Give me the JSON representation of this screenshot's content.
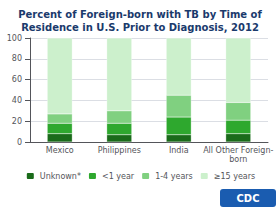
{
  "chart_data": {
    "type": "bar",
    "stacked": true,
    "title": "Percent of Foreign-born with TB by Time of\nResidence in U.S. Prior to Diagnosis, 2012",
    "categories": [
      "Mexico",
      "Philippines",
      "India",
      "All Other Foreign-\nborn"
    ],
    "series": [
      {
        "name": "Unknown*",
        "color": "#1a6b1a",
        "values": [
          8,
          7,
          7,
          8
        ]
      },
      {
        "name": "<1 year",
        "color": "#2ea82e",
        "values": [
          10,
          11,
          17,
          13
        ]
      },
      {
        "name": "1-4 years",
        "color": "#80d080",
        "values": [
          9,
          12,
          21,
          17
        ]
      },
      {
        "name": "≥15 years",
        "color": "#ccf0cc",
        "values": [
          73,
          70,
          55,
          62
        ]
      }
    ],
    "ylim": [
      0,
      100
    ],
    "yticks": [
      0,
      20,
      40,
      60,
      80,
      100
    ],
    "grid": true,
    "legend": "bottom",
    "annotations": [
      "CDC"
    ]
  }
}
